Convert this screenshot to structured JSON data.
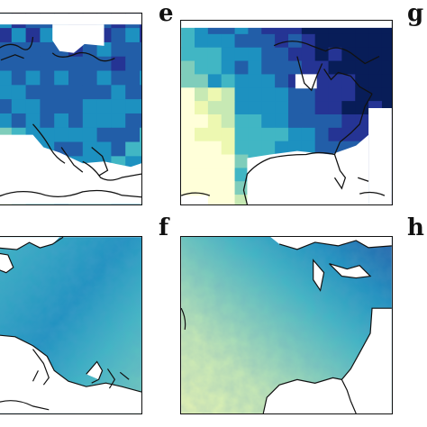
{
  "panel_labels": {
    "e": "e",
    "f": "f",
    "g": "g",
    "h": "h"
  },
  "colors": {
    "frame": "#111111",
    "coast": "#111111",
    "land_missing": "#ffffff",
    "colormap_YlGnBu": [
      "#ffffd9",
      "#edf8b1",
      "#c7e9b4",
      "#7fcdbb",
      "#41b6c4",
      "#1d91c0",
      "#225ea8",
      "#253494",
      "#081d58"
    ]
  },
  "legend": null
}
